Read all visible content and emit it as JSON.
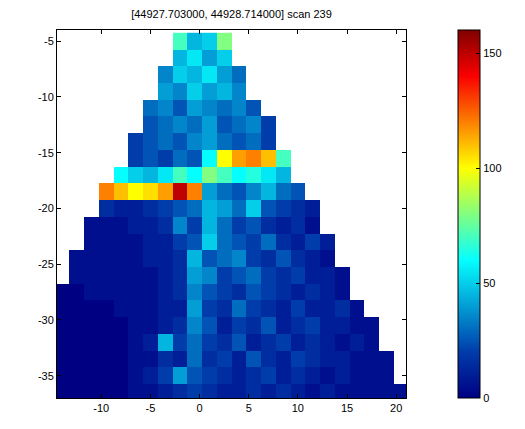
{
  "chart_data": {
    "type": "heatmap",
    "title": "[44927.703000, 44928.714000] scan 239",
    "color": "Jet",
    "x": [
      -14,
      -12.5,
      -11,
      -9.5,
      -8,
      -6.5,
      -5,
      -3.5,
      -2,
      -0.5,
      1,
      2.5,
      4,
      5.5,
      7,
      8.5,
      10,
      11.5,
      13,
      14.5,
      16,
      17.5,
      19,
      20.5
    ],
    "y": [
      -5,
      -6.5,
      -8,
      -9.5,
      -11,
      -12.5,
      -14,
      -15.5,
      -17,
      -18.5,
      -20,
      -21.5,
      -23,
      -24.5,
      -26,
      -27.5,
      -29,
      -30.5,
      -32,
      -33.5,
      -35,
      -36.5
    ],
    "values": [
      [
        null,
        null,
        null,
        null,
        null,
        null,
        null,
        null,
        70,
        45,
        50,
        80,
        null,
        null,
        null,
        null,
        null,
        null,
        null,
        null,
        null,
        null,
        null,
        null
      ],
      [
        null,
        null,
        null,
        null,
        null,
        null,
        null,
        null,
        45,
        55,
        40,
        50,
        null,
        null,
        null,
        null,
        null,
        null,
        null,
        null,
        null,
        null,
        null,
        null
      ],
      [
        null,
        null,
        null,
        null,
        null,
        null,
        null,
        35,
        50,
        45,
        55,
        40,
        30,
        null,
        null,
        null,
        null,
        null,
        null,
        null,
        null,
        null,
        null,
        null
      ],
      [
        null,
        null,
        null,
        null,
        null,
        null,
        null,
        40,
        35,
        50,
        40,
        45,
        35,
        null,
        null,
        null,
        null,
        null,
        null,
        null,
        null,
        null,
        null,
        null
      ],
      [
        null,
        null,
        null,
        null,
        null,
        null,
        30,
        35,
        25,
        40,
        35,
        30,
        35,
        25,
        null,
        null,
        null,
        null,
        null,
        null,
        null,
        null,
        null,
        null
      ],
      [
        null,
        null,
        null,
        null,
        null,
        null,
        25,
        30,
        35,
        30,
        40,
        25,
        30,
        35,
        20,
        null,
        null,
        null,
        null,
        null,
        null,
        null,
        null,
        null
      ],
      [
        null,
        null,
        null,
        null,
        null,
        20,
        25,
        30,
        25,
        35,
        40,
        30,
        25,
        30,
        20,
        null,
        null,
        null,
        null,
        null,
        null,
        null,
        null,
        null
      ],
      [
        null,
        null,
        null,
        null,
        null,
        20,
        25,
        20,
        30,
        25,
        60,
        100,
        115,
        120,
        110,
        70,
        null,
        null,
        null,
        null,
        null,
        null,
        null,
        null
      ],
      [
        null,
        null,
        null,
        null,
        60,
        50,
        45,
        55,
        70,
        60,
        80,
        70,
        60,
        65,
        55,
        45,
        null,
        null,
        null,
        null,
        null,
        null,
        null,
        null
      ],
      [
        null,
        null,
        null,
        120,
        110,
        100,
        105,
        115,
        150,
        120,
        40,
        30,
        25,
        35,
        45,
        30,
        25,
        null,
        null,
        null,
        null,
        null,
        null,
        null
      ],
      [
        null,
        null,
        null,
        15,
        10,
        10,
        15,
        20,
        25,
        30,
        45,
        40,
        30,
        50,
        25,
        20,
        15,
        10,
        null,
        null,
        null,
        null,
        null,
        null
      ],
      [
        null,
        null,
        5,
        5,
        5,
        10,
        10,
        15,
        35,
        20,
        45,
        30,
        20,
        25,
        15,
        10,
        15,
        5,
        null,
        null,
        null,
        null,
        null,
        null
      ],
      [
        null,
        null,
        5,
        5,
        5,
        5,
        10,
        10,
        20,
        25,
        50,
        30,
        25,
        20,
        30,
        15,
        10,
        20,
        10,
        null,
        null,
        null,
        null,
        null
      ],
      [
        null,
        5,
        5,
        5,
        5,
        5,
        10,
        10,
        15,
        45,
        25,
        30,
        35,
        20,
        15,
        25,
        15,
        10,
        5,
        null,
        null,
        null,
        null,
        null
      ],
      [
        null,
        5,
        5,
        5,
        5,
        5,
        5,
        10,
        15,
        40,
        35,
        20,
        25,
        30,
        20,
        15,
        20,
        10,
        10,
        5,
        null,
        null,
        null,
        null
      ],
      [
        0,
        0,
        5,
        5,
        5,
        5,
        5,
        10,
        15,
        35,
        25,
        20,
        15,
        25,
        20,
        15,
        10,
        15,
        10,
        5,
        null,
        null,
        null,
        null
      ],
      [
        0,
        0,
        0,
        0,
        5,
        5,
        5,
        10,
        10,
        40,
        20,
        15,
        30,
        20,
        15,
        10,
        20,
        10,
        10,
        15,
        5,
        null,
        null,
        null
      ],
      [
        0,
        0,
        0,
        0,
        0,
        5,
        5,
        10,
        15,
        35,
        25,
        10,
        20,
        15,
        25,
        10,
        15,
        20,
        10,
        10,
        5,
        5,
        null,
        null
      ],
      [
        0,
        0,
        0,
        0,
        0,
        5,
        10,
        45,
        20,
        30,
        20,
        15,
        25,
        10,
        15,
        20,
        10,
        15,
        10,
        5,
        10,
        5,
        null,
        null
      ],
      [
        0,
        0,
        0,
        0,
        0,
        5,
        5,
        15,
        10,
        30,
        15,
        20,
        10,
        25,
        15,
        10,
        20,
        15,
        10,
        10,
        5,
        5,
        5,
        null
      ],
      [
        0,
        0,
        0,
        0,
        0,
        5,
        10,
        20,
        40,
        25,
        20,
        15,
        10,
        15,
        20,
        10,
        15,
        10,
        5,
        10,
        5,
        5,
        5,
        null
      ],
      [
        0,
        0,
        0,
        0,
        0,
        5,
        5,
        10,
        15,
        20,
        15,
        10,
        10,
        15,
        10,
        15,
        10,
        5,
        10,
        5,
        5,
        5,
        5,
        5
      ]
    ],
    "xlim": [
      -14.5,
      21
    ],
    "ylim": [
      -37,
      -4
    ],
    "xticks": [
      -10,
      -5,
      0,
      5,
      10,
      15,
      20
    ],
    "yticks": [
      -35,
      -30,
      -25,
      -20,
      -15,
      -10,
      -5
    ],
    "colorbar_range": [
      0,
      160
    ],
    "colorbar_ticks": [
      0,
      50,
      100,
      150
    ]
  }
}
